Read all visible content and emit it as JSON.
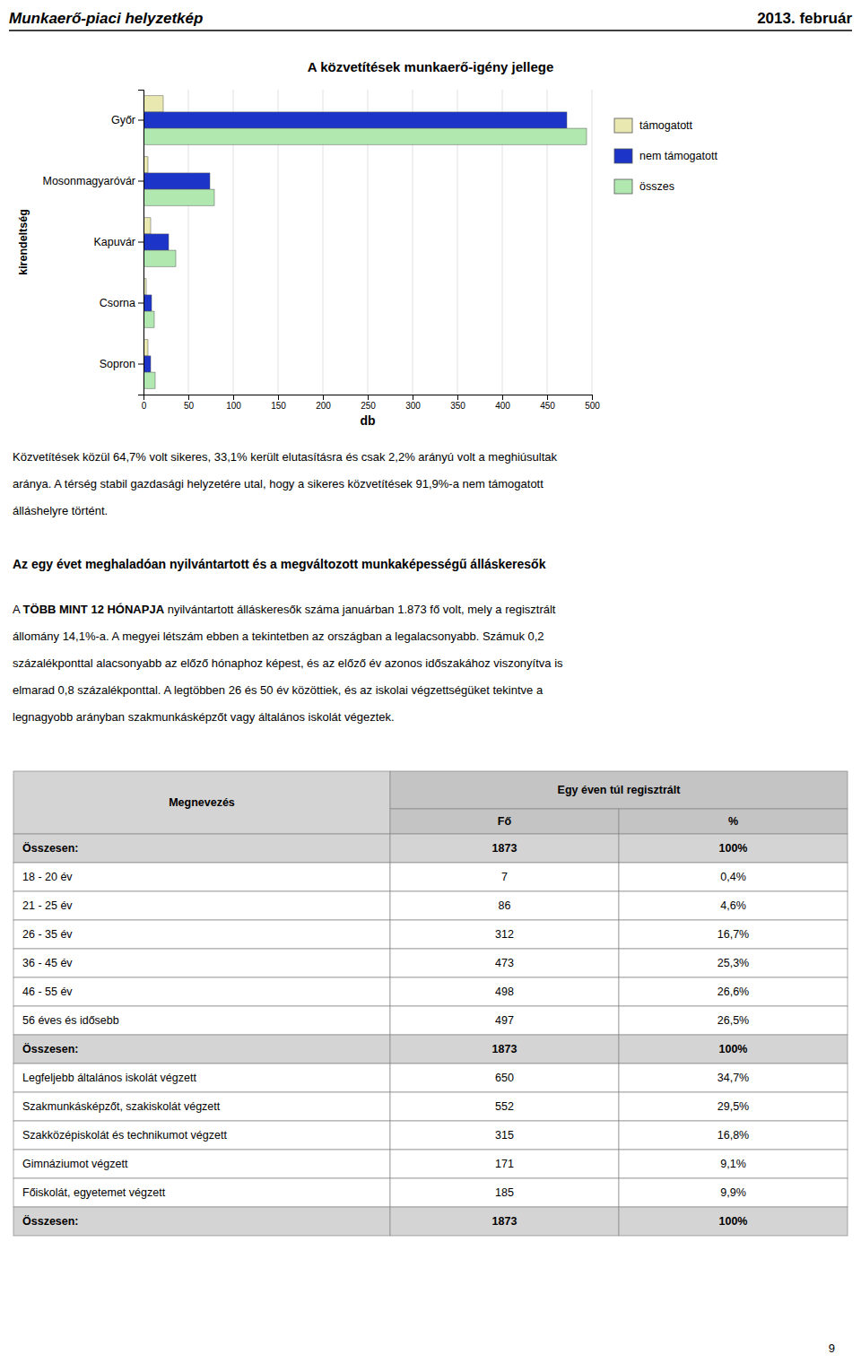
{
  "header_left": "Munkaerő-piaci helyzetkép",
  "header_right": "2013. február",
  "chart_data": {
    "type": "bar",
    "orientation": "horizontal",
    "title": "A közvetítések munkaerő-igény jellege",
    "categories": [
      "Győr",
      "Mosonmagyaróvár",
      "Kapuvár",
      "Csorna",
      "Sopron"
    ],
    "series": [
      {
        "name": "támogatott",
        "color": "#e8e8b0",
        "values": [
          22,
          5,
          8,
          3,
          5
        ]
      },
      {
        "name": "nem támogatott",
        "color": "#1c35c8",
        "values": [
          472,
          74,
          28,
          9,
          8
        ]
      },
      {
        "name": "összes",
        "color": "#b0e8b0",
        "values": [
          494,
          79,
          36,
          12,
          13
        ]
      }
    ],
    "xlim": [
      0,
      500
    ],
    "xticks": [
      0,
      50,
      100,
      150,
      200,
      250,
      300,
      350,
      400,
      450,
      500
    ],
    "xlabel": "db",
    "ylabel": "kirendeltség",
    "grid": true,
    "legend": "right"
  },
  "paragraph1": [
    "Közvetítések közül 64,7% volt sikeres, 33,1% került elutasításra és csak 2,2% arányú volt a meghiúsultak",
    "aránya. A térség stabil gazdasági helyzetére utal, hogy a sikeres közvetítések 91,9%-a nem támogatott",
    "álláshelyre történt."
  ],
  "section_title": "Az egy évet meghaladóan nyilvántartott és a megváltozott munkaképességű álláskeresők",
  "paragraph2": [
    "A TÖBB MINT 12 HÓNAPJA nyilvántartott álláskeresők száma januárban 1.873 fő volt, mely a regisztrált",
    "állomány 14,1%-a. A megyei létszám ebben a tekintetben az országban a legalacsonyabb.  Számuk 0,2",
    "százalékponttal alacsonyabb az előző hónaphoz képest, és az előző év azonos időszakához viszonyítva is",
    "elmarad 0,8 százalékponttal. A legtöbben 26 és 50 év közöttiek, és az iskolai végzettségüket tekintve a",
    "legnagyobb arányban szakmunkásképzőt vagy általános iskolát végeztek."
  ],
  "paragraph2_bold": "TÖBB MINT 12 HÓNAPJA",
  "table": {
    "header_col1": "Megnevezés",
    "header_col2": "Egy éven túl regisztrált",
    "subheader_fo": "Fő",
    "subheader_pct": "%",
    "rows": [
      {
        "name": "Összesen:",
        "fo": "1873",
        "pct": "100%",
        "bold": true
      },
      {
        "name": "18 - 20 év",
        "fo": "7",
        "pct": "0,4%",
        "bold": false
      },
      {
        "name": "21 - 25 év",
        "fo": "86",
        "pct": "4,6%",
        "bold": false
      },
      {
        "name": "26 - 35 év",
        "fo": "312",
        "pct": "16,7%",
        "bold": false
      },
      {
        "name": "36 - 45 év",
        "fo": "473",
        "pct": "25,3%",
        "bold": false
      },
      {
        "name": "46 - 55 év",
        "fo": "498",
        "pct": "26,6%",
        "bold": false
      },
      {
        "name": "56 éves és idősebb",
        "fo": "497",
        "pct": "26,5%",
        "bold": false
      },
      {
        "name": "Összesen:",
        "fo": "1873",
        "pct": "100%",
        "bold": true
      },
      {
        "name": "Legfeljebb általános iskolát végzett",
        "fo": "650",
        "pct": "34,7%",
        "bold": false
      },
      {
        "name": "Szakmunkásképzőt, szakiskolát végzett",
        "fo": "552",
        "pct": "29,5%",
        "bold": false
      },
      {
        "name": "Szakközépiskolát és technikumot végzett",
        "fo": "315",
        "pct": "16,8%",
        "bold": false
      },
      {
        "name": "Gimnáziumot végzett",
        "fo": "171",
        "pct": "9,1%",
        "bold": false
      },
      {
        "name": "Főiskolát, egyetemet végzett",
        "fo": "185",
        "pct": "9,9%",
        "bold": false
      },
      {
        "name": "Összesen:",
        "fo": "1873",
        "pct": "100%",
        "bold": true
      }
    ]
  },
  "page_number": "9"
}
